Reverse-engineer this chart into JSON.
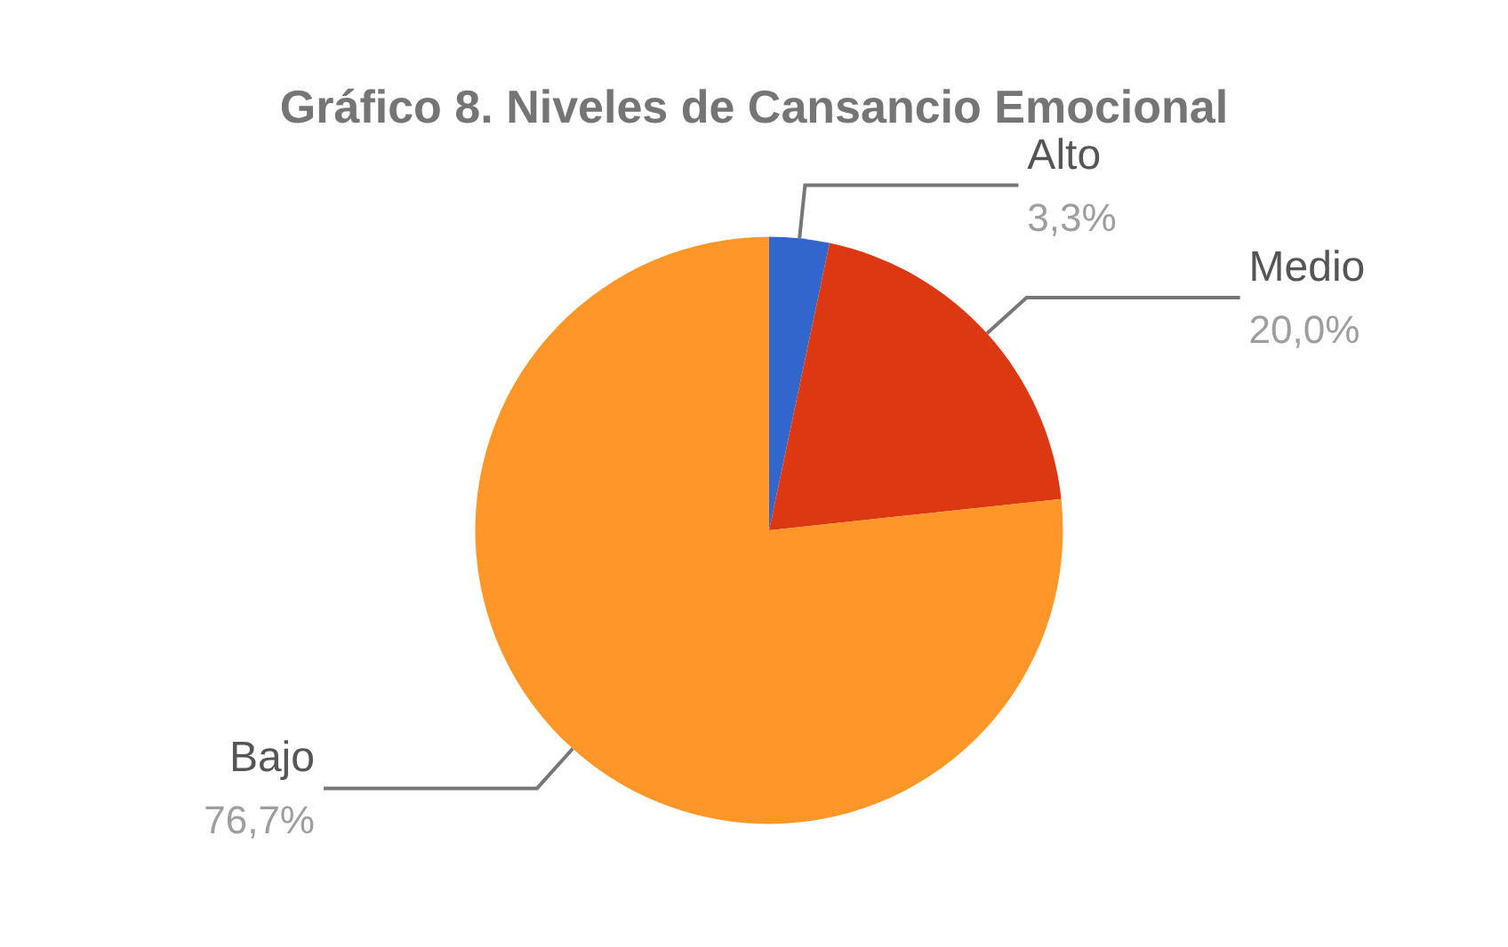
{
  "chart_data": {
    "type": "pie",
    "title": "Gráfico 8. Niveles de Cansancio Emocional",
    "categories": [
      "Alto",
      "Medio",
      "Bajo"
    ],
    "values": [
      3.3,
      20.0,
      76.7
    ],
    "colors": [
      "#3366cc",
      "#dc3912",
      "#ff9628"
    ],
    "value_labels": [
      "3,3%",
      "20,0%",
      "76,7%"
    ],
    "legend": false
  }
}
